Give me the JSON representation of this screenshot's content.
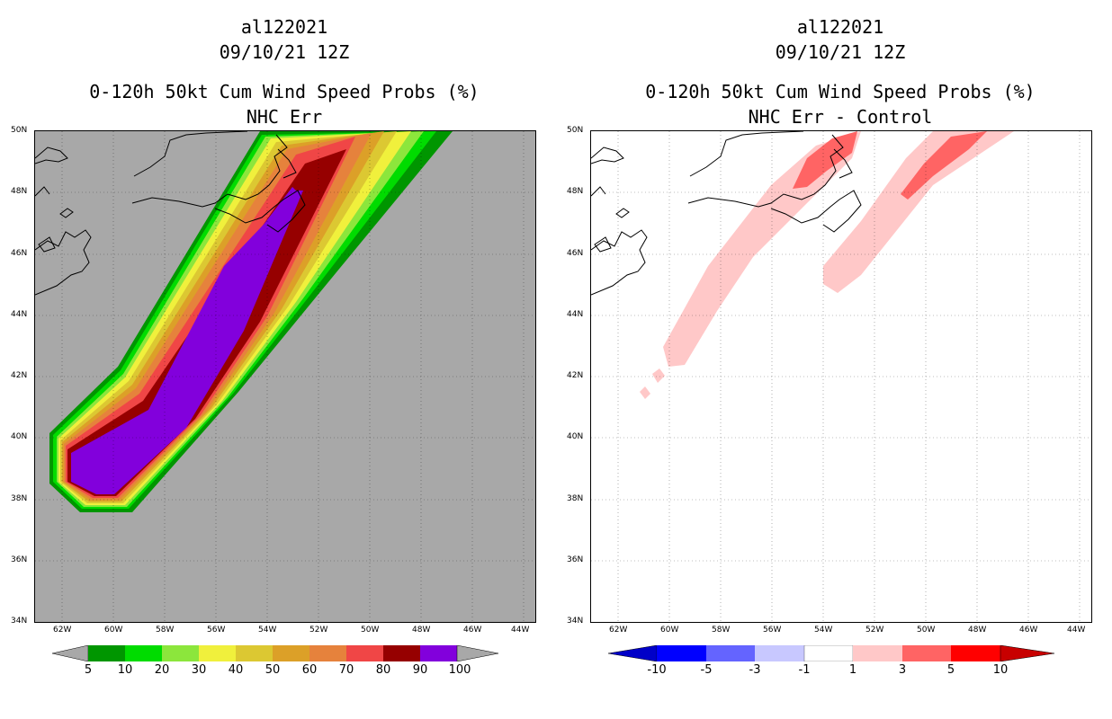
{
  "left_panel": {
    "title_line1": "al122021",
    "title_line2": "09/10/21 12Z",
    "title_line3": "0-120h 50kt Cum Wind Speed Probs (%)",
    "title_line4": "NHC Err",
    "colorbar_labels": [
      "5",
      "10",
      "20",
      "30",
      "40",
      "50",
      "60",
      "70",
      "80",
      "90",
      "100"
    ],
    "colorbar_colors": [
      "#009600",
      "#00dc00",
      "#8ce63c",
      "#f0f03c",
      "#dcc832",
      "#dca028",
      "#e6823c",
      "#f04646",
      "#960000",
      "#8200dc"
    ],
    "background_color": "#a8a8a8"
  },
  "right_panel": {
    "title_line1": "al122021",
    "title_line2": "09/10/21 12Z",
    "title_line3": "0-120h 50kt Cum Wind Speed Probs (%)",
    "title_line4": "NHC Err - Control",
    "colorbar_labels": [
      "-10",
      "-5",
      "-3",
      "-1",
      "1",
      "3",
      "5",
      "10"
    ],
    "colorbar_colors": [
      "#0000c8",
      "#0000ff",
      "#6464ff",
      "#c8c8ff",
      "#ffffff",
      "#ffc8c8",
      "#ff6464",
      "#ff0000",
      "#c80000"
    ],
    "background_color": "#ffffff"
  },
  "axes": {
    "lat_labels": [
      "50N",
      "48N",
      "46N",
      "44N",
      "42N",
      "40N",
      "38N",
      "36N",
      "34N"
    ],
    "lon_labels": [
      "62W",
      "60W",
      "58W",
      "56W",
      "54W",
      "52W",
      "50W",
      "48W",
      "46W",
      "44W"
    ]
  }
}
